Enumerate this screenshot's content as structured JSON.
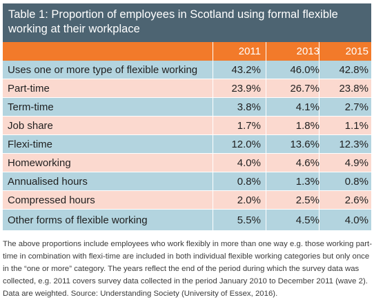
{
  "title": "Table 1: Proportion of employees  in Scotland using formal flexible working at their workplace",
  "columns": [
    "2011",
    "2013",
    "2015"
  ],
  "rows": [
    {
      "label": "Uses one or more type of flexible working",
      "values": [
        "43.2%",
        "46.0%",
        "42.8%"
      ]
    },
    {
      "label": "Part-time",
      "values": [
        "23.9%",
        "26.7%",
        "23.8%"
      ]
    },
    {
      "label": "Term-time",
      "values": [
        "3.8%",
        "4.1%",
        "2.7%"
      ]
    },
    {
      "label": "Job share",
      "values": [
        "1.7%",
        "1.8%",
        "1.1%"
      ]
    },
    {
      "label": "Flexi-time",
      "values": [
        "12.0%",
        "13.6%",
        "12.3%"
      ]
    },
    {
      "label": "Homeworking",
      "values": [
        "4.0%",
        "4.6%",
        "4.9%"
      ]
    },
    {
      "label": "Annualised hours",
      "values": [
        "0.8%",
        "1.3%",
        "0.8%"
      ]
    },
    {
      "label": "Compressed hours",
      "values": [
        "2.0%",
        "2.5%",
        "2.6%"
      ]
    },
    {
      "label": "Other forms of flexible working",
      "values": [
        "5.5%",
        "4.5%",
        "4.0%"
      ]
    }
  ],
  "notes": "The above proportions include employees who work flexibly in more than one way e.g. those working part-time in combination with flexi-time are included in both individual flexible working categories but only once in the “one or more” category. The years reflect the end of the period during which the survey data was collected, e.g. 2011 covers survey data collected in the period January 2010 to December 2011 (wave 2). Data are weighted. Source: Understanding Society (University of Essex, 2016).",
  "colors": {
    "title_bg": "#4d6472",
    "header_bg": "#f27a2a",
    "row_blue": "#b3d4df",
    "row_pink": "#fbd9cf"
  }
}
